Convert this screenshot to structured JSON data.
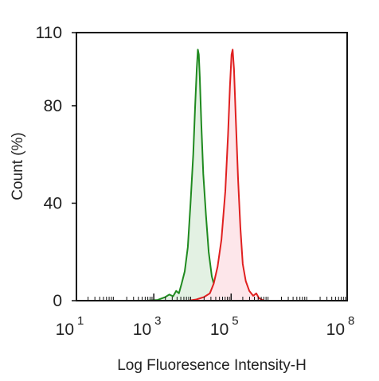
{
  "chart_data": {
    "type": "area",
    "xlabel": "Log Fluoresence Intensity-H",
    "ylabel": "Count  (%)",
    "x_scale": "log",
    "xlim": [
      1,
      8
    ],
    "ylim": [
      0,
      110
    ],
    "x_ticks": [
      {
        "value": 1,
        "base": "10",
        "exp": "1"
      },
      {
        "value": 3,
        "base": "10",
        "exp": "3"
      },
      {
        "value": 5,
        "base": "10",
        "exp": "5"
      },
      {
        "value": 8,
        "base": "10",
        "exp": "8"
      }
    ],
    "y_ticks": [
      {
        "value": 0,
        "label": "0"
      },
      {
        "value": 40,
        "label": "40"
      },
      {
        "value": 80,
        "label": "80"
      },
      {
        "value": 110,
        "label": "110"
      }
    ],
    "grid": false,
    "legend": "none",
    "series": [
      {
        "color": "#1f8a1f",
        "fill": "#e3f1e3",
        "points": [
          [
            2.8,
            0
          ],
          [
            3.1,
            0.3
          ],
          [
            3.3,
            1.5
          ],
          [
            3.4,
            2.5
          ],
          [
            3.5,
            1.8
          ],
          [
            3.58,
            4
          ],
          [
            3.65,
            3
          ],
          [
            3.72,
            7
          ],
          [
            3.8,
            12
          ],
          [
            3.88,
            22
          ],
          [
            3.95,
            40
          ],
          [
            4.02,
            60
          ],
          [
            4.07,
            80
          ],
          [
            4.11,
            95
          ],
          [
            4.14,
            103
          ],
          [
            4.165,
            101
          ],
          [
            4.19,
            92
          ],
          [
            4.23,
            72
          ],
          [
            4.28,
            52
          ],
          [
            4.35,
            35
          ],
          [
            4.42,
            20
          ],
          [
            4.5,
            10
          ],
          [
            4.6,
            4
          ],
          [
            4.72,
            1
          ],
          [
            4.85,
            0
          ]
        ]
      },
      {
        "color": "#e02020",
        "fill": "#fde6ea",
        "points": [
          [
            3.9,
            0
          ],
          [
            4.1,
            0.5
          ],
          [
            4.3,
            1.5
          ],
          [
            4.45,
            3
          ],
          [
            4.55,
            7
          ],
          [
            4.65,
            14
          ],
          [
            4.75,
            25
          ],
          [
            4.85,
            45
          ],
          [
            4.92,
            68
          ],
          [
            4.97,
            88
          ],
          [
            5.01,
            101
          ],
          [
            5.04,
            103
          ],
          [
            5.075,
            95
          ],
          [
            5.12,
            75
          ],
          [
            5.18,
            50
          ],
          [
            5.24,
            30
          ],
          [
            5.3,
            15
          ],
          [
            5.38,
            8
          ],
          [
            5.47,
            4
          ],
          [
            5.57,
            2
          ],
          [
            5.65,
            3
          ],
          [
            5.72,
            1
          ],
          [
            5.85,
            0
          ]
        ]
      }
    ]
  }
}
